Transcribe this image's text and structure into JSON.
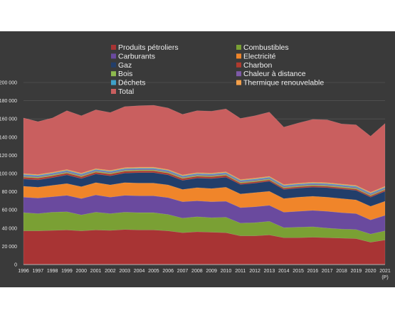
{
  "chart_data": {
    "type": "area",
    "stacked": true,
    "categories": [
      "1996",
      "1997",
      "1998",
      "1999",
      "2000",
      "2001",
      "2002",
      "2003",
      "2004",
      "2005",
      "2006",
      "2007",
      "2008",
      "2009",
      "2010",
      "2011",
      "2012",
      "2013",
      "2014",
      "2015",
      "2016",
      "2017",
      "2018",
      "2019",
      "2020",
      "2021"
    ],
    "last_category_note": "(P)",
    "ylim": [
      0,
      200000
    ],
    "yticks": [
      "0",
      "20 000",
      "40 000",
      "60 000",
      "80 000",
      "100 000",
      "120 000",
      "140 000",
      "160 000",
      "180 000",
      "200 000"
    ],
    "grid": true,
    "legend_position": "top",
    "background": "#3a3a3a",
    "series": [
      {
        "name": "Produits pétroliers",
        "color": "#a83434",
        "values": [
          37000,
          37000,
          37500,
          38000,
          37000,
          38000,
          37500,
          38500,
          38000,
          38000,
          37000,
          35000,
          36000,
          35500,
          35000,
          31500,
          31500,
          32500,
          29500,
          29500,
          30000,
          29500,
          29000,
          28500,
          24500,
          27000
        ]
      },
      {
        "name": "Combustibles",
        "color": "#7aa034",
        "values": [
          20000,
          19000,
          20000,
          20000,
          17500,
          19500,
          18500,
          19000,
          19000,
          19000,
          18000,
          16000,
          16500,
          16000,
          17000,
          14000,
          14500,
          15000,
          11000,
          11500,
          11500,
          10500,
          10000,
          10000,
          9000,
          10000
        ]
      },
      {
        "name": "Carburants",
        "color": "#6a4a9e",
        "values": [
          17000,
          17000,
          17000,
          18000,
          18000,
          19000,
          18000,
          18500,
          18500,
          18500,
          18500,
          18000,
          17500,
          17500,
          17500,
          17000,
          17500,
          17500,
          17000,
          17500,
          18000,
          18500,
          18000,
          17500,
          15500,
          17000
        ]
      },
      {
        "name": "Electricité",
        "color": "#f0852a",
        "values": [
          12000,
          12000,
          12500,
          13000,
          13000,
          13500,
          13500,
          14000,
          14000,
          14000,
          14000,
          13500,
          14500,
          14500,
          15500,
          15000,
          15500,
          15500,
          15000,
          15500,
          15500,
          15500,
          15500,
          15000,
          15000,
          15500
        ]
      },
      {
        "name": "Gaz",
        "color": "#223e6a",
        "values": [
          8000,
          8000,
          8500,
          9500,
          9000,
          9500,
          10000,
          10500,
          11500,
          11500,
          11000,
          10000,
          10500,
          11000,
          11000,
          10500,
          10500,
          11000,
          10000,
          10000,
          10000,
          10500,
          10500,
          10500,
          10000,
          11000
        ]
      },
      {
        "name": "Charbon",
        "color": "#b03a2e",
        "values": [
          2000,
          2000,
          2000,
          2000,
          2000,
          2000,
          2000,
          2000,
          2000,
          2000,
          2000,
          2000,
          2000,
          2000,
          2000,
          1500,
          1500,
          1500,
          1500,
          1500,
          1500,
          1500,
          1500,
          1500,
          1500,
          1500
        ]
      },
      {
        "name": "Bois",
        "color": "#8db94e",
        "values": [
          1000,
          1000,
          1000,
          1000,
          1000,
          1000,
          1000,
          1000,
          1000,
          1000,
          1000,
          1000,
          1000,
          1000,
          1000,
          1000,
          1000,
          1000,
          1000,
          1000,
          1000,
          1000,
          1000,
          1000,
          1000,
          1000
        ]
      },
      {
        "name": "Chaleur à distance",
        "color": "#7e5aa8",
        "values": [
          1000,
          1000,
          1000,
          1000,
          1000,
          1000,
          1000,
          1000,
          1000,
          1000,
          1000,
          1000,
          1000,
          1000,
          1000,
          1000,
          1000,
          1000,
          1000,
          1000,
          1000,
          1000,
          1000,
          1000,
          1000,
          1000
        ]
      },
      {
        "name": "Déchets",
        "color": "#3fa0c8",
        "values": [
          1000,
          1000,
          1000,
          1000,
          1000,
          1000,
          1000,
          1000,
          1000,
          1000,
          1000,
          1000,
          1000,
          1000,
          1000,
          1000,
          1000,
          1000,
          1000,
          1000,
          1000,
          1000,
          1000,
          1000,
          1000,
          1000
        ]
      },
      {
        "name": "Thermique renouvelable",
        "color": "#f5a04a",
        "values": [
          1000,
          1000,
          1000,
          1000,
          1000,
          1000,
          1000,
          1000,
          1000,
          1000,
          1000,
          1000,
          1000,
          1000,
          1000,
          1000,
          1000,
          1000,
          1000,
          1000,
          1000,
          1000,
          1000,
          1000,
          1000,
          1000
        ]
      },
      {
        "name": "Total",
        "color": "#c95f5f",
        "values": [
          61000,
          58000,
          59500,
          64500,
          63000,
          64500,
          63500,
          67000,
          67500,
          68000,
          67500,
          66500,
          68000,
          68000,
          69000,
          67000,
          68500,
          70500,
          63000,
          66000,
          69000,
          69000,
          66000,
          66500,
          61500,
          69000
        ]
      }
    ]
  }
}
